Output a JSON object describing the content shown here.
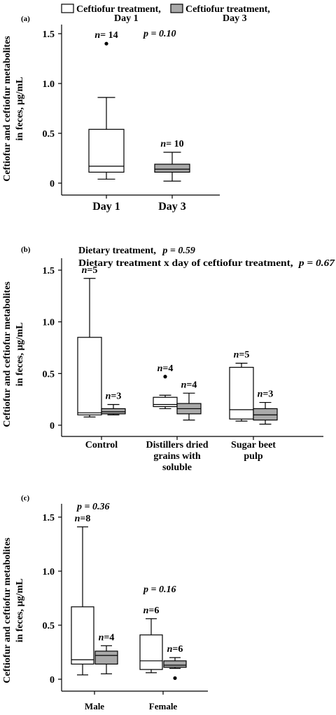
{
  "legend": {
    "day1_label_line1": "Ceftiofur treatment,",
    "day1_label_line2": "Day 1",
    "day3_label_line1": "Ceftiofur treatment,",
    "day3_label_line2": "Day 3",
    "day1_color": "#ffffff",
    "day3_color": "#a9a9a9"
  },
  "chart_data": [
    {
      "type": "box",
      "panel_label": "(a)",
      "ylabel_line1": "Ceftiofur and ceftiofur metabolites",
      "ylabel_line2": "in feces, µg/mL",
      "ylim": [
        0,
        1.6
      ],
      "yticks": [
        "0",
        "0.5",
        "1.0",
        "1.5"
      ],
      "categories": [
        "Day 1",
        "Day 3"
      ],
      "annotations": {
        "p_text": "p = 0.10"
      },
      "series": [
        {
          "name": "Day 1",
          "boxes": [
            {
              "category": "Day 1",
              "min": 0.04,
              "q1": 0.11,
              "median": 0.17,
              "q3": 0.54,
              "max": 0.86,
              "outliers": [
                1.4
              ],
              "n_label": "n= 14"
            }
          ]
        },
        {
          "name": "Day 3",
          "boxes": [
            {
              "category": "Day 3",
              "min": 0.02,
              "q1": 0.11,
              "median": 0.14,
              "q3": 0.19,
              "max": 0.31,
              "outliers": [],
              "n_label": "n= 10"
            }
          ]
        }
      ]
    },
    {
      "type": "box",
      "panel_label": "(b)",
      "ylabel_line1": "Ceftiofur and ceftiofur metabolites",
      "ylabel_line2": "in feces, µg/mL",
      "ylim": [
        0,
        1.6
      ],
      "yticks": [
        "0",
        "0.5",
        "1.0",
        "1.5"
      ],
      "categories": [
        "Control",
        "Distillers dried grains with soluble",
        "Sugar beet pulp"
      ],
      "category_label_lines": [
        [
          "Control"
        ],
        [
          "Distillers dried",
          "grains with",
          "soluble"
        ],
        [
          "Sugar beet",
          "pulp"
        ]
      ],
      "annotations": {
        "line1_prefix": "Dietary treatment,",
        "line1_p": "p = 0.59",
        "line2_prefix": "Dietary treatment x day of ceftiofur treatment,",
        "line2_p": "p = 0.67"
      },
      "series": [
        {
          "name": "Day 1",
          "boxes": [
            {
              "category": "Control",
              "min": 0.08,
              "q1": 0.1,
              "median": 0.12,
              "q3": 0.85,
              "max": 1.42,
              "outliers": [],
              "n_label": "n=5"
            },
            {
              "category": "Distillers dried grains with soluble",
              "min": 0.16,
              "q1": 0.18,
              "median": 0.2,
              "q3": 0.27,
              "max": 0.29,
              "outliers": [
                0.47
              ],
              "n_label": "n=4"
            },
            {
              "category": "Sugar beet pulp",
              "min": 0.04,
              "q1": 0.06,
              "median": 0.15,
              "q3": 0.56,
              "max": 0.6,
              "outliers": [],
              "n_label": "n=5"
            }
          ]
        },
        {
          "name": "Day 3",
          "boxes": [
            {
              "category": "Control",
              "min": 0.1,
              "q1": 0.11,
              "median": 0.13,
              "q3": 0.16,
              "max": 0.2,
              "outliers": [],
              "n_label": "n=3"
            },
            {
              "category": "Distillers dried grains with soluble",
              "min": 0.05,
              "q1": 0.11,
              "median": 0.16,
              "q3": 0.21,
              "max": 0.31,
              "outliers": [],
              "n_label": "n=4"
            },
            {
              "category": "Sugar beet pulp",
              "min": 0.01,
              "q1": 0.05,
              "median": 0.1,
              "q3": 0.16,
              "max": 0.22,
              "outliers": [],
              "n_label": "n=3"
            }
          ]
        }
      ]
    },
    {
      "type": "box",
      "panel_label": "(c)",
      "ylabel_line1": "Ceftiofur and ceftiofur metabolites",
      "ylabel_line2": "in feces, µg/mL",
      "ylim": [
        0,
        1.6
      ],
      "yticks": [
        "0",
        "0.5",
        "1.0",
        "1.5"
      ],
      "categories": [
        "Male",
        "Female"
      ],
      "annotations": {
        "male_p": "p = 0.36",
        "female_p": "p = 0.16"
      },
      "series": [
        {
          "name": "Day 1",
          "boxes": [
            {
              "category": "Male",
              "min": 0.04,
              "q1": 0.14,
              "median": 0.18,
              "q3": 0.67,
              "max": 1.41,
              "outliers": [],
              "n_label": "n=8"
            },
            {
              "category": "Female",
              "min": 0.06,
              "q1": 0.09,
              "median": 0.17,
              "q3": 0.41,
              "max": 0.56,
              "outliers": [],
              "n_label": "n=6"
            }
          ]
        },
        {
          "name": "Day 3",
          "boxes": [
            {
              "category": "Male",
              "min": 0.05,
              "q1": 0.14,
              "median": 0.22,
              "q3": 0.26,
              "max": 0.31,
              "outliers": [],
              "n_label": "n=4"
            },
            {
              "category": "Female",
              "min": 0.1,
              "q1": 0.11,
              "median": 0.13,
              "q3": 0.17,
              "max": 0.2,
              "outliers": [
                0.01
              ],
              "n_label": "n=6"
            }
          ]
        }
      ]
    }
  ]
}
